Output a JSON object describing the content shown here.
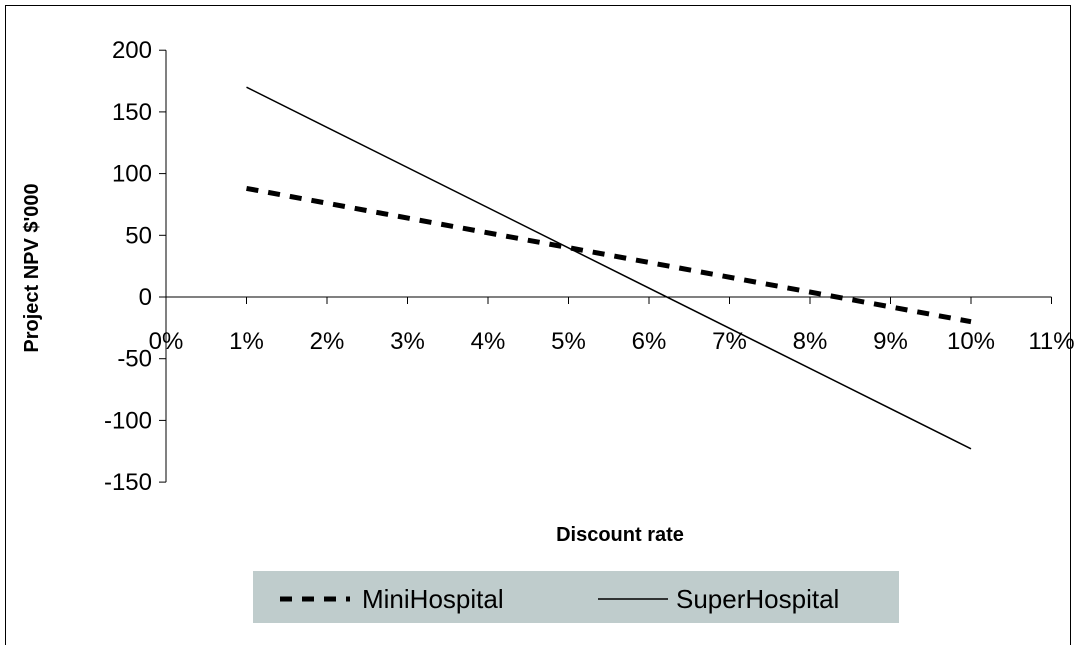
{
  "chart_data": {
    "type": "line",
    "title": "",
    "xlabel": "Discount rate",
    "ylabel": "Project NPV $'000",
    "xlim": [
      0,
      11
    ],
    "ylim": [
      -150,
      200
    ],
    "x_ticks": [
      "0%",
      "1%",
      "2%",
      "3%",
      "4%",
      "5%",
      "6%",
      "7%",
      "8%",
      "9%",
      "10%",
      "11%"
    ],
    "y_ticks": [
      "200",
      "150",
      "100",
      "50",
      "0",
      "-50",
      "-100",
      "-150"
    ],
    "grid": false,
    "legend_position": "bottom",
    "series": [
      {
        "name": "MiniHospital",
        "style": "dashed",
        "color": "#000000",
        "x": [
          1,
          10
        ],
        "y": [
          88,
          -20
        ]
      },
      {
        "name": "SuperHospital",
        "style": "solid",
        "color": "#000000",
        "x": [
          1,
          10
        ],
        "y": [
          170,
          -123
        ]
      }
    ]
  }
}
